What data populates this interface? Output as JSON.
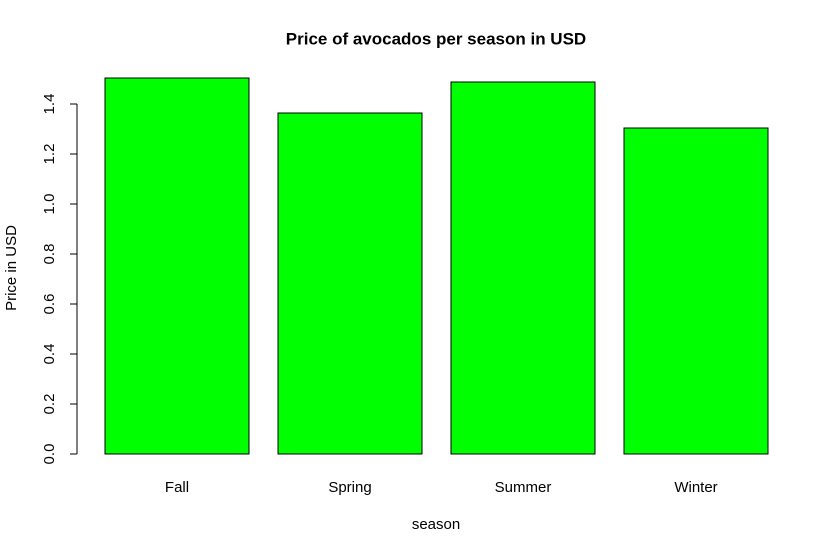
{
  "chart_data": {
    "type": "bar",
    "title": "Price of avocados per season in USD",
    "x_label": "season",
    "y_label": "Price in USD",
    "categories": [
      "Fall",
      "Spring",
      "Summer",
      "Winter"
    ],
    "values": [
      1.504,
      1.364,
      1.488,
      1.304
    ],
    "color": "#00ff00",
    "ylim": [
      0,
      1.5
    ],
    "yticks": [
      {
        "value": 0,
        "label": "0.0"
      },
      0.2,
      0.4,
      0.6,
      0.8,
      {
        "value": 1,
        "label": "1.0"
      },
      1.2,
      1.4
    ]
  }
}
